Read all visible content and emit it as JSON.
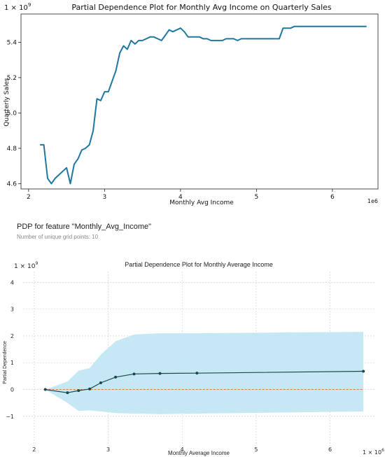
{
  "chart_data": [
    {
      "type": "line",
      "title": "Partial Dependence Plot for Monthly Avg Income on Quarterly Sales",
      "xlabel": "Monthly Avg Income",
      "ylabel": "Quarterly Sales",
      "x_multiplier": "1e6",
      "y_multiplier": "1 × 10",
      "y_multiplier_exp": "9",
      "xlim": [
        1.9,
        6.6
      ],
      "ylim": [
        4.57,
        5.56
      ],
      "x_ticks": [
        2,
        3,
        4,
        5,
        6
      ],
      "y_ticks": [
        4.6,
        4.8,
        5.0,
        5.2,
        5.4
      ],
      "grid": false,
      "line_color": "#1f77a0",
      "series": [
        {
          "x": [
            2.15,
            2.2,
            2.25,
            2.3,
            2.35,
            2.4,
            2.45,
            2.5,
            2.55,
            2.6,
            2.65,
            2.7,
            2.75,
            2.8,
            2.85,
            2.9,
            2.95,
            3.0,
            3.05,
            3.1,
            3.15,
            3.2,
            3.25,
            3.3,
            3.35,
            3.4,
            3.45,
            3.5,
            3.55,
            3.6,
            3.65,
            3.7,
            3.75,
            3.8,
            3.85,
            3.9,
            3.95,
            4.0,
            4.05,
            4.1,
            4.15,
            4.2,
            4.25,
            4.3,
            4.35,
            4.4,
            4.45,
            4.5,
            4.55,
            4.6,
            4.65,
            4.7,
            4.75,
            4.8,
            4.85,
            4.9,
            4.95,
            5.0,
            5.05,
            5.1,
            5.15,
            5.2,
            5.25,
            5.3,
            5.35,
            5.4,
            5.45,
            5.5,
            5.55,
            5.6,
            5.65,
            5.7,
            5.75,
            5.8,
            5.9,
            6.0,
            6.2,
            6.45
          ],
          "y": [
            4.82,
            4.82,
            4.63,
            4.6,
            4.63,
            4.65,
            4.67,
            4.69,
            4.6,
            4.71,
            4.74,
            4.79,
            4.8,
            4.82,
            4.9,
            5.08,
            5.07,
            5.12,
            5.12,
            5.18,
            5.24,
            5.34,
            5.38,
            5.36,
            5.41,
            5.39,
            5.41,
            5.41,
            5.42,
            5.43,
            5.43,
            5.42,
            5.41,
            5.44,
            5.47,
            5.46,
            5.47,
            5.48,
            5.46,
            5.43,
            5.43,
            5.43,
            5.43,
            5.42,
            5.42,
            5.41,
            5.41,
            5.41,
            5.41,
            5.42,
            5.42,
            5.42,
            5.41,
            5.42,
            5.42,
            5.42,
            5.42,
            5.42,
            5.42,
            5.42,
            5.42,
            5.42,
            5.42,
            5.42,
            5.48,
            5.48,
            5.48,
            5.49,
            5.49,
            5.49,
            5.49,
            5.49,
            5.49,
            5.49,
            5.49,
            5.49,
            5.49,
            5.49
          ]
        }
      ]
    },
    {
      "type": "line",
      "heading": "PDP for feature \"Monthly_Avg_Income\"",
      "subheading": "Number of unique grid points: 10",
      "title": "Partial Dependence Plot for Monthly Average Income",
      "xlabel": "Monthly Average Income",
      "ylabel": "Partial Dependence",
      "x_multiplier": "1 × 10",
      "x_multiplier_exp": "6",
      "y_multiplier": "1 × 10",
      "y_multiplier_exp": "9",
      "xlim": [
        1.85,
        6.6
      ],
      "ylim": [
        -2.1,
        4.4
      ],
      "x_ticks": [
        2,
        3,
        4,
        5,
        6
      ],
      "y_ticks": [
        -1,
        0,
        1,
        2,
        3,
        4
      ],
      "grid": true,
      "line_color": "#1a4a4a",
      "baseline_color": "#e8703a",
      "band_color": "#bfe6f3",
      "series": [
        {
          "x": [
            2.15,
            2.45,
            2.6,
            2.75,
            2.9,
            3.1,
            3.35,
            3.7,
            4.2,
            6.45
          ],
          "y": [
            0.0,
            -0.12,
            -0.04,
            0.02,
            0.25,
            0.46,
            0.58,
            0.6,
            0.61,
            0.68
          ],
          "upper": [
            0.0,
            0.3,
            0.7,
            0.8,
            1.3,
            1.8,
            2.05,
            2.1,
            2.1,
            2.15
          ],
          "lower": [
            0.0,
            -0.5,
            -0.8,
            -0.78,
            -0.82,
            -0.88,
            -0.9,
            -0.92,
            -0.9,
            -0.82
          ]
        }
      ]
    }
  ]
}
